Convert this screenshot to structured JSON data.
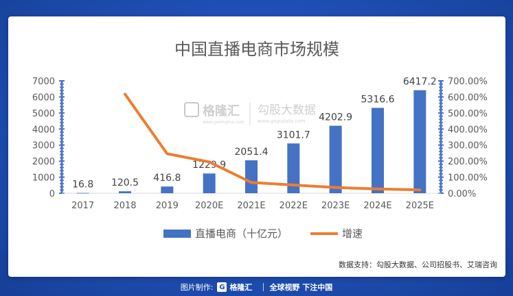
{
  "chart_data": {
    "type": "bar",
    "title": "中国直播电商市场规模",
    "categories": [
      "2017",
      "2018",
      "2019",
      "2020E",
      "2021E",
      "2022E",
      "2023E",
      "2024E",
      "2025E"
    ],
    "series": [
      {
        "name": "直播电商（十亿元）",
        "type": "bar",
        "axis": "left",
        "color": "#4472c4",
        "values": [
          16.8,
          120.5,
          416.8,
          1229.9,
          2051.4,
          3101.7,
          4202.9,
          5316.6,
          6417.2
        ],
        "labels": [
          "16.8",
          "120.5",
          "416.8",
          "1229.9",
          "2051.4",
          "3101.7",
          "4202.9",
          "5316.6",
          "6417.2"
        ]
      },
      {
        "name": "增速",
        "type": "line",
        "axis": "right",
        "color": "#ed7d31",
        "values": [
          null,
          617.3,
          245.9,
          195.1,
          66.8,
          51.2,
          35.5,
          26.5,
          20.7
        ]
      }
    ],
    "ylim": [
      0,
      7000
    ],
    "yticks": [
      "0",
      "1000",
      "2000",
      "3000",
      "4000",
      "5000",
      "6000",
      "7000"
    ],
    "y2lim": [
      0,
      700
    ],
    "y2ticks": [
      "0.00%",
      "100.00%",
      "200.00%",
      "300.00%",
      "400.00%",
      "500.00%",
      "600.00%",
      "700.00%"
    ],
    "legend": "bottom",
    "grid": false
  },
  "watermark": {
    "brand": "格隆汇",
    "brand_url": "www.gelonghui.com",
    "partner": "勾股大数据",
    "partner_url": "www.gogudata.com"
  },
  "source_text": "数据支持：勾股大数据、公司招股书、艾瑞咨询",
  "footer": {
    "made_by": "图片制作:",
    "logo_char": "G",
    "brand": "格隆汇",
    "slogan": "全球视野 下注中国"
  },
  "colors": {
    "background": "#1f4fb4",
    "bar": "#4472c4",
    "line": "#ed7d31",
    "axis": "#4472c4"
  }
}
